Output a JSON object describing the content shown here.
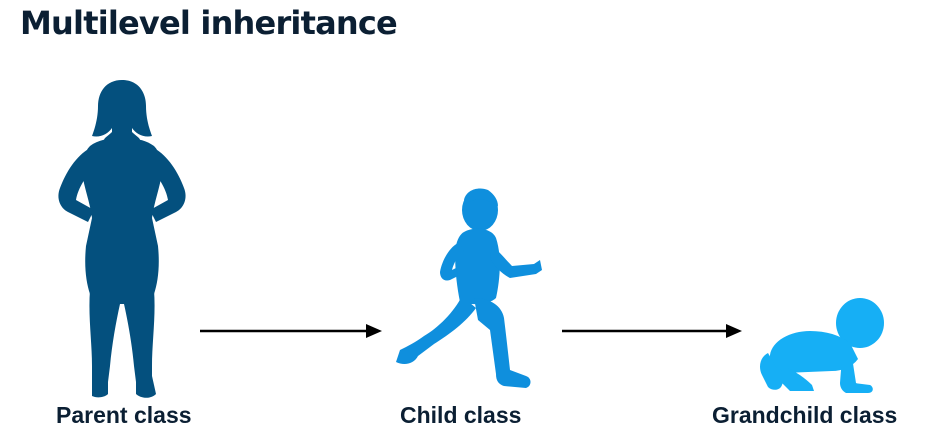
{
  "title": "Multilevel inheritance",
  "nodes": [
    {
      "label": "Parent class",
      "icon": "woman-silhouette-icon",
      "color": "#04507e"
    },
    {
      "label": "Child class",
      "icon": "running-child-icon",
      "color": "#0f8fdd"
    },
    {
      "label": "Grandchild class",
      "icon": "crawling-baby-icon",
      "color": "#16aff5"
    }
  ],
  "arrow_color": "#000000"
}
